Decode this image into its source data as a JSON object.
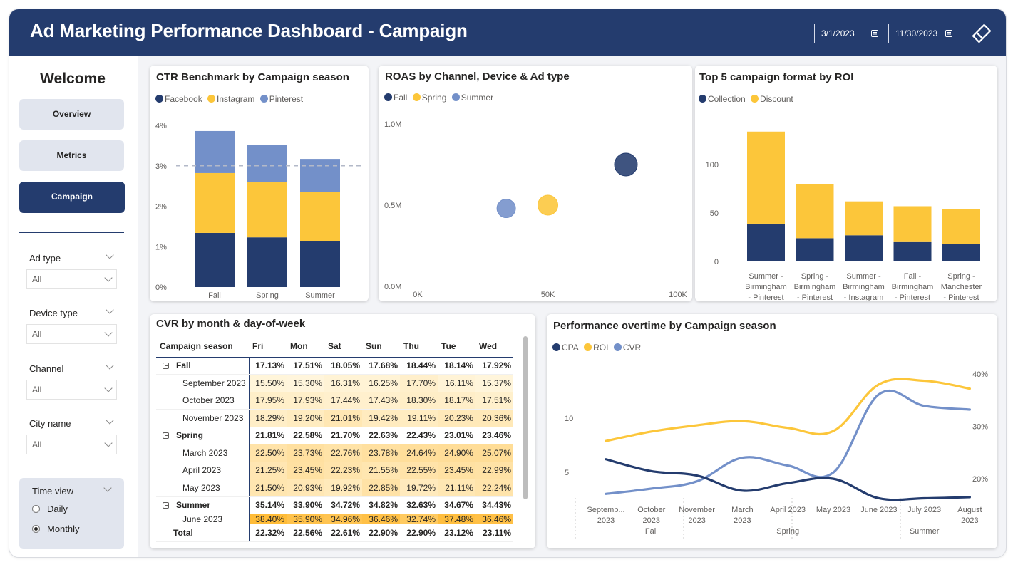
{
  "header": {
    "title": "Ad Marketing Performance Dashboard - Campaign",
    "start_date": "3/1/2023",
    "end_date": "11/30/2023",
    "calendar_icon": "calendar-icon",
    "clear_filters_icon": "eraser-icon"
  },
  "sidebar": {
    "welcome": "Welcome",
    "nav": [
      {
        "label": "Overview",
        "active": false
      },
      {
        "label": "Metrics",
        "active": false
      },
      {
        "label": "Campaign",
        "active": true
      }
    ],
    "slicers": [
      {
        "label": "Ad type",
        "value": "All"
      },
      {
        "label": "Device type",
        "value": "All"
      },
      {
        "label": "Channel",
        "value": "All"
      },
      {
        "label": "City name",
        "value": "All"
      }
    ],
    "time_view": {
      "label": "Time view",
      "options": [
        "Daily",
        "Monthly"
      ],
      "selected": "Monthly"
    }
  },
  "colors": {
    "navy": "#243c6e",
    "yellow": "#fcc63a",
    "periwinkle": "#7390c9",
    "background": "#f3f4f7"
  },
  "chart_data": [
    {
      "id": "ctr",
      "type": "bar",
      "stacked": true,
      "title": "CTR Benchmark by Campaign season",
      "categories": [
        "Fall",
        "Spring",
        "Summer"
      ],
      "series": [
        {
          "name": "Facebook",
          "color": "#243c6e",
          "values": [
            1.34,
            1.23,
            1.13
          ]
        },
        {
          "name": "Instagram",
          "color": "#fcc63a",
          "values": [
            1.48,
            1.36,
            1.23
          ]
        },
        {
          "name": "Pinterest",
          "color": "#7390c9",
          "values": [
            1.04,
            0.92,
            0.81
          ]
        }
      ],
      "ylim": [
        0,
        4
      ],
      "yticks": [
        "0%",
        "1%",
        "2%",
        "3%",
        "4%"
      ],
      "ytick_values": [
        0,
        1,
        2,
        3,
        4
      ],
      "reference_line": 3,
      "legend": "top-left"
    },
    {
      "id": "roas",
      "type": "scatter",
      "title": "ROAS by Channel, Device & Ad type",
      "series": [
        {
          "name": "Fall",
          "color": "#243c6e",
          "x": 80000,
          "y": 750000
        },
        {
          "name": "Spring",
          "color": "#fcc63a",
          "x": 50000,
          "y": 500000
        },
        {
          "name": "Summer",
          "color": "#7390c9",
          "x": 34000,
          "y": 480000
        }
      ],
      "xlim": [
        0,
        100000
      ],
      "ylim": [
        0,
        1000000
      ],
      "xticks": [
        "0K",
        "50K",
        "100K"
      ],
      "xtick_values": [
        0,
        50000,
        100000
      ],
      "yticks": [
        "0.0M",
        "0.5M",
        "1.0M"
      ],
      "ytick_values": [
        0,
        500000,
        1000000
      ],
      "legend": "top-left"
    },
    {
      "id": "roi",
      "type": "bar",
      "stacked": true,
      "title": "Top 5 campaign format by ROI",
      "categories": [
        [
          "Summer -",
          "Birmingham",
          "- Pinterest"
        ],
        [
          "Spring -",
          "Birmingham",
          "- Pinterest"
        ],
        [
          "Summer -",
          "Birmingham",
          "- Instagram"
        ],
        [
          "Fall -",
          "Birmingham",
          "- Pinterest"
        ],
        [
          "Spring -",
          "Manchester",
          "- Pinterest"
        ]
      ],
      "series": [
        {
          "name": "Collection",
          "color": "#243c6e",
          "values": [
            39,
            24,
            27,
            20,
            18
          ]
        },
        {
          "name": "Discount",
          "color": "#fcc63a",
          "values": [
            95,
            56,
            35,
            37,
            36
          ]
        }
      ],
      "ylim": [
        0,
        140
      ],
      "yticks": [
        "0",
        "50",
        "100"
      ],
      "ytick_values": [
        0,
        50,
        100
      ],
      "legend": "top-left"
    },
    {
      "id": "cvr_matrix",
      "type": "table",
      "title": "CVR by month & day-of-week",
      "columns": [
        "Campaign season",
        "Fri",
        "Mon",
        "Sat",
        "Sun",
        "Thu",
        "Tue",
        "Wed"
      ],
      "rows": [
        {
          "label": "Fall",
          "level": 0,
          "values": [
            "17.13%",
            "17.51%",
            "18.05%",
            "17.68%",
            "18.44%",
            "18.14%",
            "17.92%"
          ]
        },
        {
          "label": "September 2023",
          "level": 1,
          "values": [
            "15.50%",
            "15.30%",
            "16.31%",
            "16.25%",
            "17.70%",
            "16.11%",
            "15.37%"
          ]
        },
        {
          "label": "October 2023",
          "level": 1,
          "values": [
            "17.95%",
            "17.93%",
            "17.44%",
            "17.43%",
            "18.30%",
            "18.17%",
            "17.51%"
          ]
        },
        {
          "label": "November 2023",
          "level": 1,
          "values": [
            "18.29%",
            "19.20%",
            "21.01%",
            "19.42%",
            "19.11%",
            "20.23%",
            "20.36%"
          ]
        },
        {
          "label": "Spring",
          "level": 0,
          "values": [
            "21.81%",
            "22.58%",
            "21.70%",
            "22.63%",
            "22.43%",
            "23.01%",
            "23.46%"
          ]
        },
        {
          "label": "March 2023",
          "level": 1,
          "values": [
            "22.50%",
            "23.73%",
            "22.76%",
            "23.78%",
            "24.64%",
            "24.90%",
            "25.07%"
          ]
        },
        {
          "label": "April 2023",
          "level": 1,
          "values": [
            "21.25%",
            "23.45%",
            "22.23%",
            "21.55%",
            "22.55%",
            "23.45%",
            "22.99%"
          ]
        },
        {
          "label": "May 2023",
          "level": 1,
          "values": [
            "21.50%",
            "20.93%",
            "19.92%",
            "22.85%",
            "19.72%",
            "21.11%",
            "22.24%"
          ]
        },
        {
          "label": "Summer",
          "level": 0,
          "values": [
            "35.14%",
            "33.90%",
            "34.72%",
            "34.82%",
            "32.63%",
            "34.67%",
            "34.43%"
          ]
        },
        {
          "label": "June 2023",
          "level": 1,
          "values": [
            "38.40%",
            "35.90%",
            "34.96%",
            "36.46%",
            "32.74%",
            "37.48%",
            "36.46%"
          ]
        }
      ],
      "total": {
        "label": "Total",
        "values": [
          "22.32%",
          "22.56%",
          "22.61%",
          "22.90%",
          "22.90%",
          "23.12%",
          "23.11%"
        ]
      }
    },
    {
      "id": "performance",
      "type": "line",
      "title": "Performance overtime by Campaign season",
      "x": [
        "Septemb... 2023",
        "October 2023",
        "November 2023",
        "March 2023",
        "April 2023",
        "May 2023",
        "June 2023",
        "July 2023",
        "August 2023"
      ],
      "x_labels": [
        [
          "Septemb...",
          "2023"
        ],
        [
          "October",
          "2023"
        ],
        [
          "November",
          "2023"
        ],
        [
          "March",
          "2023"
        ],
        [
          "April 2023"
        ],
        [
          "May 2023"
        ],
        [
          "June 2023"
        ],
        [
          "July 2023"
        ],
        [
          "August",
          "2023"
        ]
      ],
      "groups": [
        {
          "name": "Fall",
          "span": 3
        },
        {
          "name": "Spring",
          "span": 3
        },
        {
          "name": "Summer",
          "span": 3
        }
      ],
      "series": [
        {
          "name": "CPA",
          "axis": "left",
          "color": "#243c6e",
          "values": [
            6.2,
            5.1,
            4.7,
            3.3,
            4.0,
            4.4,
            2.6,
            2.6,
            2.7
          ]
        },
        {
          "name": "ROI",
          "axis": "right",
          "color": "#fcc63a",
          "values": [
            0.272,
            0.29,
            0.302,
            0.31,
            0.297,
            0.291,
            0.38,
            0.387,
            0.372
          ]
        },
        {
          "name": "CVR",
          "axis": "right",
          "color": "#7390c9",
          "values": [
            0.171,
            0.181,
            0.195,
            0.24,
            0.225,
            0.212,
            0.361,
            0.339,
            0.332
          ]
        }
      ],
      "y_left": {
        "ticks": [
          "5",
          "10"
        ],
        "tick_values": [
          5,
          10
        ]
      },
      "y_right": {
        "ticks": [
          "20%",
          "30%",
          "40%"
        ],
        "tick_values": [
          0.2,
          0.3,
          0.4
        ]
      },
      "legend": "top-left"
    }
  ]
}
